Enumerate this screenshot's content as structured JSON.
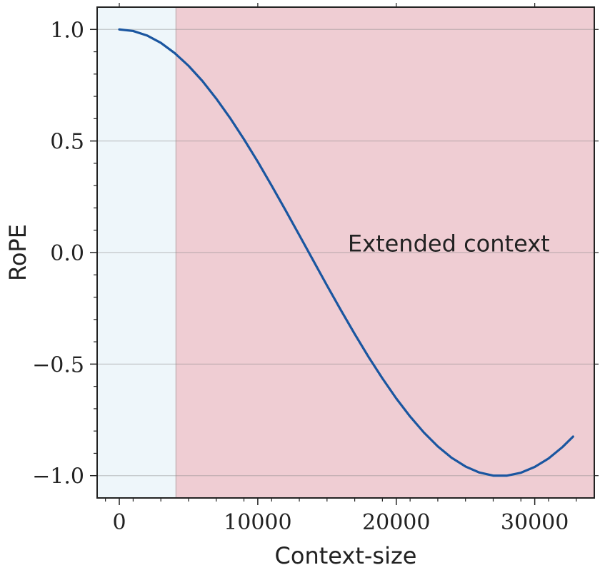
{
  "chart_data": {
    "type": "line",
    "title": "",
    "xlabel": "Context-size",
    "ylabel": "RoPE",
    "xlim": [
      -1600,
      34300
    ],
    "ylim": [
      -1.1,
      1.1
    ],
    "xticks": [
      0,
      10000,
      20000,
      30000
    ],
    "xtick_labels": [
      "0",
      "10000",
      "20000",
      "30000"
    ],
    "yticks": [
      1.0,
      0.5,
      0.0,
      -0.5,
      -1.0
    ],
    "ytick_labels": [
      "1.0",
      "0.5",
      "0.0",
      "−0.5",
      "−1.0"
    ],
    "grid": "horizontal",
    "regions": [
      {
        "x_start": -1600,
        "x_end": 4096,
        "color": "#eef6fa",
        "label": ""
      },
      {
        "x_start": 4096,
        "x_end": 34300,
        "color": "#efcdd3",
        "label": "Extended context"
      }
    ],
    "annotation": {
      "text": "Extended context",
      "x": 16500,
      "y": 0.04
    },
    "series": [
      {
        "color": "#1a56a0",
        "x": [
          0,
          1000,
          2000,
          3000,
          4000,
          5000,
          6000,
          7000,
          8000,
          9000,
          10000,
          11000,
          12000,
          13000,
          14000,
          15000,
          16000,
          17000,
          18000,
          19000,
          20000,
          21000,
          22000,
          23000,
          24000,
          25000,
          26000,
          27000,
          28000,
          29000,
          30000,
          31000,
          32000,
          32768
        ],
        "y": [
          1.0,
          0.993,
          0.973,
          0.94,
          0.894,
          0.837,
          0.769,
          0.69,
          0.603,
          0.508,
          0.407,
          0.3,
          0.19,
          0.078,
          -0.035,
          -0.148,
          -0.258,
          -0.365,
          -0.468,
          -0.564,
          -0.654,
          -0.735,
          -0.807,
          -0.869,
          -0.92,
          -0.959,
          -0.986,
          -1.0,
          -1.0,
          -0.987,
          -0.961,
          -0.923,
          -0.872,
          -0.825
        ]
      }
    ]
  }
}
